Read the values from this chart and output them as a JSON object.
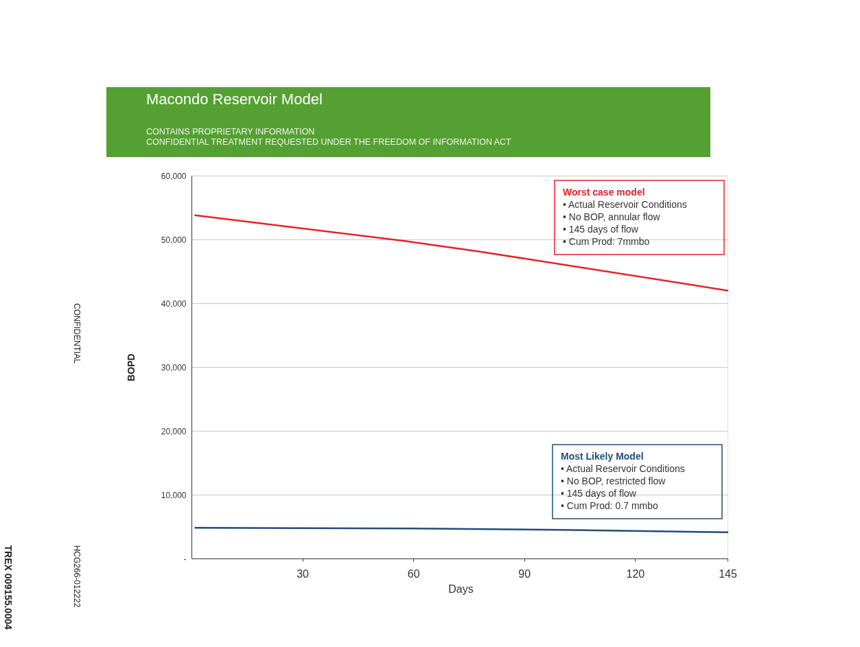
{
  "chart_data": {
    "type": "line",
    "title": "Macondo Reservoir Model",
    "subtitle": "CONTAINS PROPRIETARY INFORMATION\nCONFIDENTIAL TREATMENT REQUESTED UNDER THE FREEDOM OF INFORMATION ACT",
    "xlabel": "Days",
    "ylabel": "BOPD",
    "series": [
      {
        "name": "Worst case model",
        "color": "#e3232b",
        "x": [
          1,
          57,
          78,
          145
        ],
        "values": [
          53800,
          49800,
          48100,
          42000
        ]
      },
      {
        "name": "Most Likely Model",
        "color": "#1f4e79",
        "x": [
          1,
          60,
          100,
          145
        ],
        "values": [
          4800,
          4700,
          4500,
          4100
        ]
      }
    ],
    "annotations": [
      "• Actual Reservoir Conditions\n• No BOP, annular flow\n• 145 days of flow\n• Cum Prod: 7mmbo",
      "• Actual Reservoir Conditions\n• No BOP, restricted flow\n• 145 days of flow\n• Cum Prod: 0.7 mmbo",
      "CONFIDENTIAL",
      "HCG266-012222",
      "TREX 009155.0004"
    ],
    "xlim": [
      0,
      145
    ],
    "xticks": [
      30,
      60,
      90,
      120,
      145
    ],
    "ylim": [
      0,
      60000
    ],
    "yticks": [
      {
        "value": 0,
        "label": "-"
      },
      {
        "value": 10000,
        "label": "10,000"
      },
      {
        "value": 20000,
        "label": "20,000"
      },
      {
        "value": 30000,
        "label": "30,000"
      },
      {
        "value": 40000,
        "label": "40,000"
      },
      {
        "value": 50000,
        "label": "50,000"
      },
      {
        "value": 60000,
        "label": "60,000"
      }
    ],
    "grid": "y",
    "marker": "none",
    "line_style": "solid"
  }
}
